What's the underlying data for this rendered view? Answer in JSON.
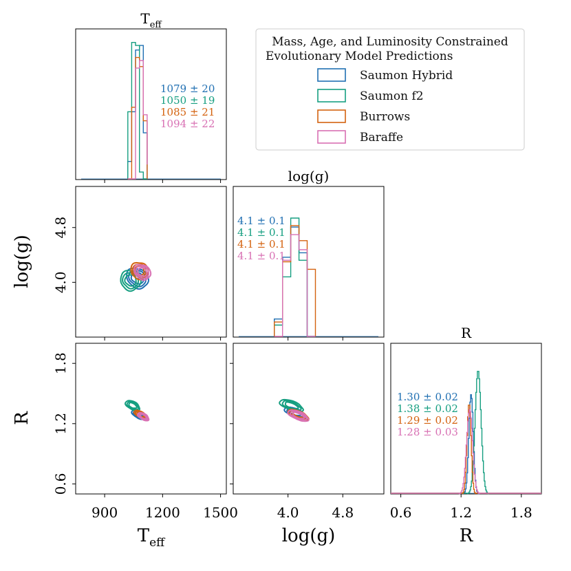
{
  "chart_data": {
    "type": "corner",
    "title": "",
    "legend": {
      "title_line1": "Mass, Age, and Luminosity Constrained",
      "title_line2": "Evolutionary Model Predictions",
      "placement": "top-right",
      "entries": [
        {
          "name": "Saumon Hybrid",
          "color": "#1f6fb2"
        },
        {
          "name": "Saumon f2",
          "color": "#159e80"
        },
        {
          "name": "Burrows",
          "color": "#d4620f"
        },
        {
          "name": "Baraffe",
          "color": "#d870b3"
        }
      ]
    },
    "parameters": [
      {
        "key": "teff",
        "label_base": "T",
        "label_sub": "eff",
        "range": [
          750,
          1530
        ],
        "ticks": [
          900,
          1200,
          1500
        ],
        "annotations": [
          "1079 ± 20",
          "1050 ± 19",
          "1085 ± 21",
          "1094 ± 22"
        ],
        "hist_bin_edges": [
          1020,
          1040,
          1060,
          1080,
          1100,
          1120
        ],
        "hist_series": [
          {
            "name": "Saumon Hybrid",
            "counts": [
              0.12,
              0.45,
              0.86,
              0.89,
              0.31,
              0.0
            ]
          },
          {
            "name": "Saumon f2",
            "counts": [
              0.45,
              0.91,
              0.89,
              0.05,
              0.0,
              0.0
            ]
          },
          {
            "name": "Burrows",
            "counts": [
              0.0,
              0.48,
              0.81,
              0.75,
              0.39,
              0.0
            ]
          },
          {
            "name": "Baraffe",
            "counts": [
              0.0,
              0.0,
              0.74,
              0.79,
              0.43,
              0.1
            ]
          }
        ]
      },
      {
        "key": "logg",
        "label_base": "log(g)",
        "label_sub": "",
        "range": [
          3.2,
          5.4
        ],
        "ticks": [
          4.0,
          4.8
        ],
        "annotations": [
          "4.1 ± 0.1",
          "4.1 ± 0.1",
          "4.1 ± 0.1",
          "4.1 ± 0.1"
        ],
        "hist_bin_edges": [
          3.8,
          3.92,
          4.04,
          4.16,
          4.28,
          4.4
        ],
        "hist_series": [
          {
            "name": "Saumon Hybrid",
            "counts": [
              0.12,
              0.53,
              0.73,
              0.56,
              0.0
            ]
          },
          {
            "name": "Saumon f2",
            "counts": [
              0.08,
              0.4,
              0.79,
              0.51,
              0.0
            ]
          },
          {
            "name": "Burrows",
            "counts": [
              0.1,
              0.5,
              0.74,
              0.64,
              0.45
            ]
          },
          {
            "name": "Baraffe",
            "counts": [
              0.0,
              0.51,
              0.68,
              0.58,
              0.0
            ]
          }
        ]
      },
      {
        "key": "r",
        "label_base": "R",
        "label_sub": "",
        "range": [
          0.5,
          2.0
        ],
        "ticks": [
          0.6,
          1.2,
          1.8
        ],
        "annotations": [
          "1.30 ± 0.02",
          "1.38 ± 0.02",
          "1.29 ± 0.02",
          "1.28 ± 0.03"
        ],
        "hist_gauss": [
          {
            "name": "Saumon Hybrid",
            "mean": 1.3,
            "sigma": 0.022,
            "peak": 0.66
          },
          {
            "name": "Saumon f2",
            "mean": 1.37,
            "sigma": 0.03,
            "peak": 0.82
          },
          {
            "name": "Burrows",
            "mean": 1.28,
            "sigma": 0.02,
            "peak": 0.6
          },
          {
            "name": "Baraffe",
            "mean": 1.285,
            "sigma": 0.03,
            "peak": 0.56
          }
        ]
      }
    ],
    "contours": [
      {
        "x": "teff",
        "y": "logg",
        "series": [
          {
            "name": "Saumon Hybrid",
            "cx": 1070,
            "cy": 4.06,
            "sx": 48,
            "sy": 0.17,
            "tilt": 55
          },
          {
            "name": "Saumon f2",
            "cx": 1035,
            "cy": 4.03,
            "sx": 52,
            "sy": 0.15,
            "tilt": 50
          },
          {
            "name": "Burrows",
            "cx": 1080,
            "cy": 4.17,
            "sx": 42,
            "sy": 0.13,
            "tilt": 55
          },
          {
            "name": "Baraffe",
            "cx": 1095,
            "cy": 4.15,
            "sx": 36,
            "sy": 0.13,
            "tilt": 55
          }
        ]
      },
      {
        "x": "teff",
        "y": "r",
        "series": [
          {
            "name": "Saumon Hybrid",
            "cx": 1075,
            "cy": 1.29,
            "sx": 38,
            "sy": 0.035,
            "tilt": -30
          },
          {
            "name": "Saumon f2",
            "cx": 1045,
            "cy": 1.38,
            "sx": 40,
            "sy": 0.04,
            "tilt": -28
          },
          {
            "name": "Burrows",
            "cx": 1085,
            "cy": 1.29,
            "sx": 36,
            "sy": 0.03,
            "tilt": -30
          },
          {
            "name": "Baraffe",
            "cx": 1100,
            "cy": 1.27,
            "sx": 32,
            "sy": 0.03,
            "tilt": -30
          }
        ]
      },
      {
        "x": "logg",
        "y": "r",
        "series": [
          {
            "name": "Saumon Hybrid",
            "cx": 4.1,
            "cy": 1.31,
            "sx": 0.16,
            "sy": 0.04,
            "tilt": -22
          },
          {
            "name": "Saumon f2",
            "cx": 4.05,
            "cy": 1.38,
            "sx": 0.18,
            "sy": 0.045,
            "tilt": -20
          },
          {
            "name": "Burrows",
            "cx": 4.15,
            "cy": 1.29,
            "sx": 0.16,
            "sy": 0.035,
            "tilt": -22
          },
          {
            "name": "Baraffe",
            "cx": 4.15,
            "cy": 1.28,
            "sx": 0.16,
            "sy": 0.04,
            "tilt": -22
          }
        ]
      }
    ]
  }
}
